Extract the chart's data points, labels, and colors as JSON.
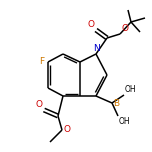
{
  "background_color": "#ffffff",
  "bond_color": "#000000",
  "atom_colors": {
    "N": "#0000cc",
    "O": "#cc0000",
    "F": "#cc7700",
    "B": "#cc7700"
  },
  "figsize": [
    1.52,
    1.52
  ],
  "dpi": 100,
  "lw": 1.1,
  "fs": 6.5
}
